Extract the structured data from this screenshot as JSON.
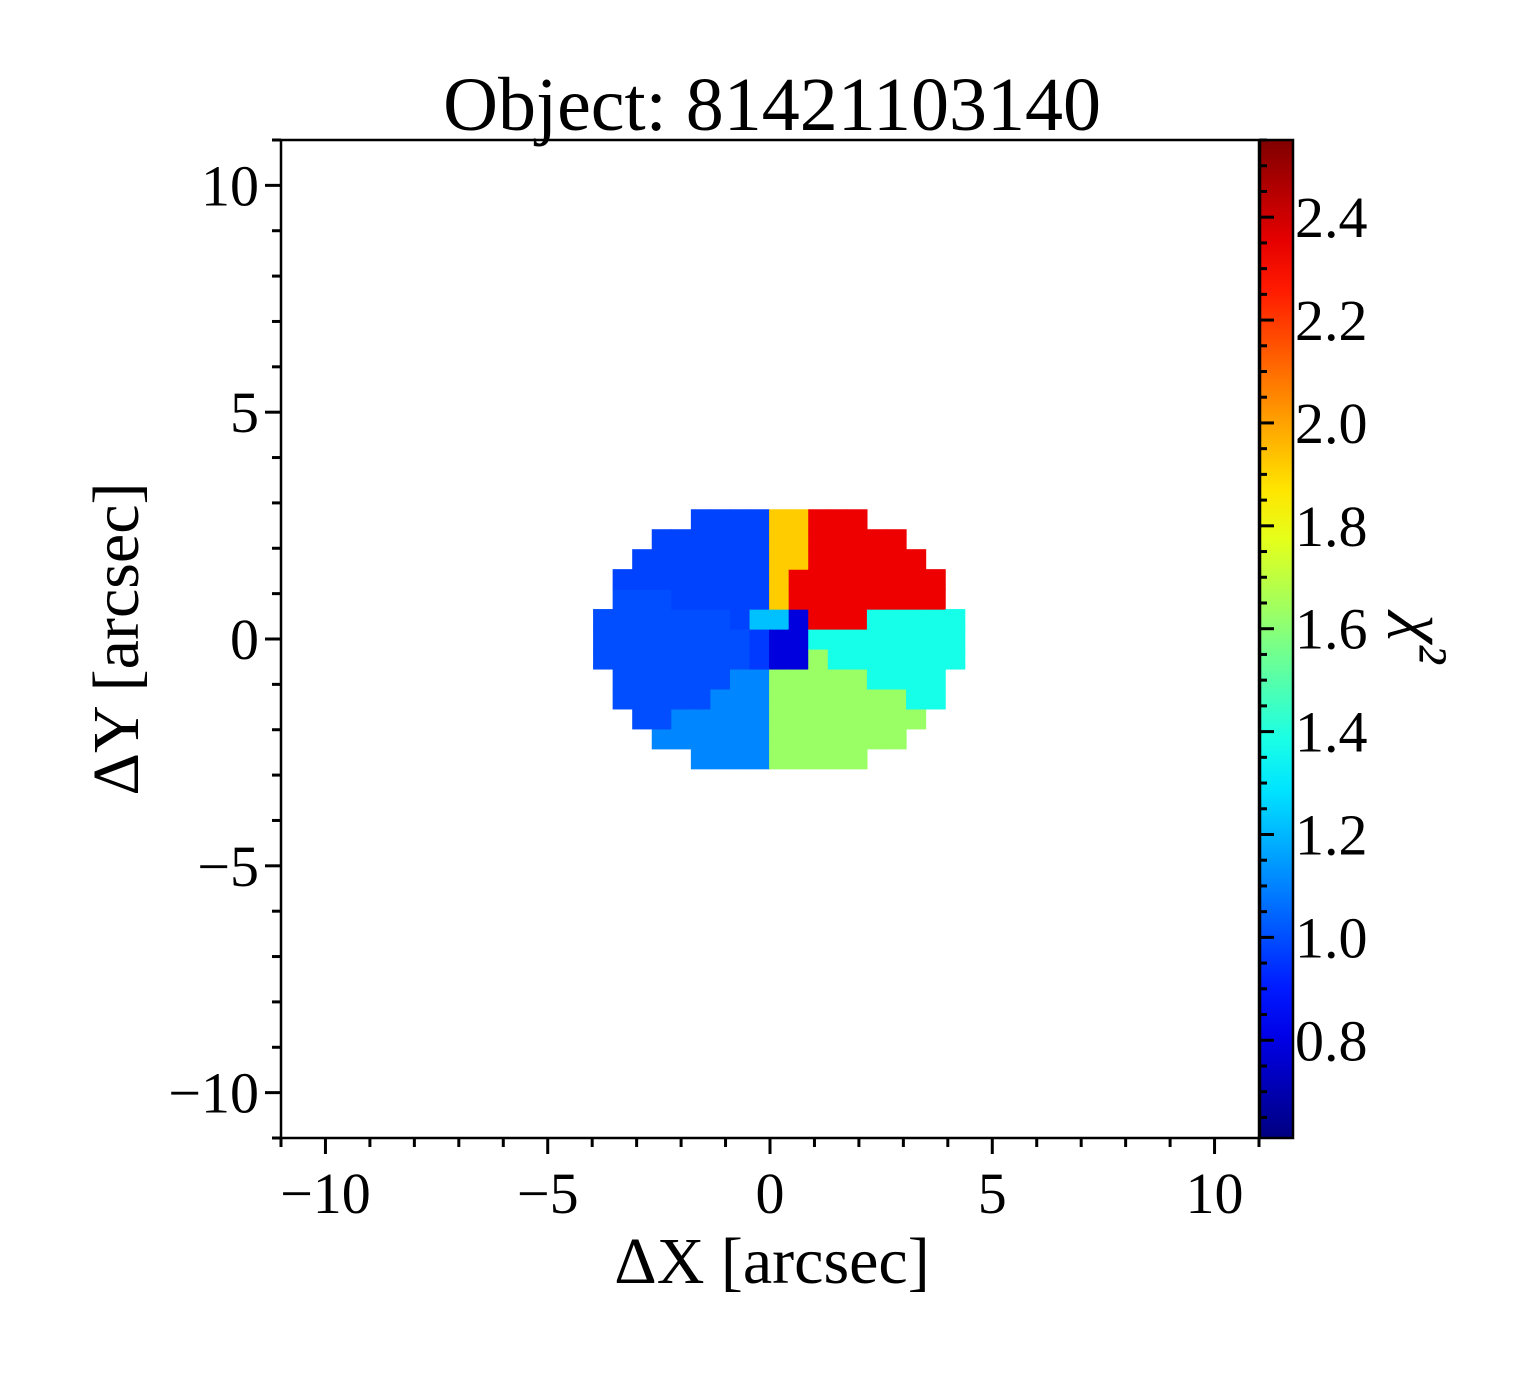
{
  "chart_data": {
    "type": "heatmap",
    "title": "Object: 81421103140",
    "xlabel": "ΔX [arcsec]",
    "ylabel": "ΔY [arcsec]",
    "colorbar_label": "χ²",
    "xlim": [
      -11,
      11
    ],
    "ylim": [
      -11,
      11
    ],
    "x_ticks": [
      -10,
      -5,
      0,
      5,
      10
    ],
    "x_tick_labels": [
      "−10",
      "−5",
      "0",
      "5",
      "10"
    ],
    "y_ticks": [
      -10,
      -5,
      0,
      5,
      10
    ],
    "y_tick_labels": [
      "−10",
      "−5",
      "0",
      "5",
      "10"
    ],
    "colorbar_range": [
      0.61,
      2.55
    ],
    "colorbar_ticks": [
      0.8,
      1.0,
      1.2,
      1.4,
      1.6,
      1.8,
      2.0,
      2.2,
      2.4
    ],
    "colorbar_tick_labels": [
      "0.8",
      "1.0",
      "1.2",
      "1.4",
      "1.6",
      "1.8",
      "2.0",
      "2.2",
      "2.4"
    ],
    "colormap": "jet",
    "grid": false,
    "pixel_size_arcsec": 0.44,
    "field": {
      "center": [
        0.2,
        0.0
      ],
      "radius_x": 4.1,
      "radius_y": 3.05
    },
    "center_bin": {
      "radius": 0.75,
      "values": [
        0.79,
        1.22,
        0.96,
        0.79
      ]
    },
    "sectors": [
      {
        "from_deg": -25,
        "to_deg": 13,
        "chi2": 1.38
      },
      {
        "from_deg": 13,
        "to_deg": 72,
        "chi2": 2.34
      },
      {
        "from_deg": 72,
        "to_deg": 98,
        "chi2": 1.92
      },
      {
        "from_deg": 98,
        "to_deg": 160,
        "chi2": 0.98
      },
      {
        "from_deg": 160,
        "to_deg": 218,
        "chi2": 1.0
      },
      {
        "from_deg": 218,
        "to_deg": 268,
        "chi2": 1.11
      },
      {
        "from_deg": 268,
        "to_deg": 335,
        "chi2": 1.63
      }
    ]
  }
}
